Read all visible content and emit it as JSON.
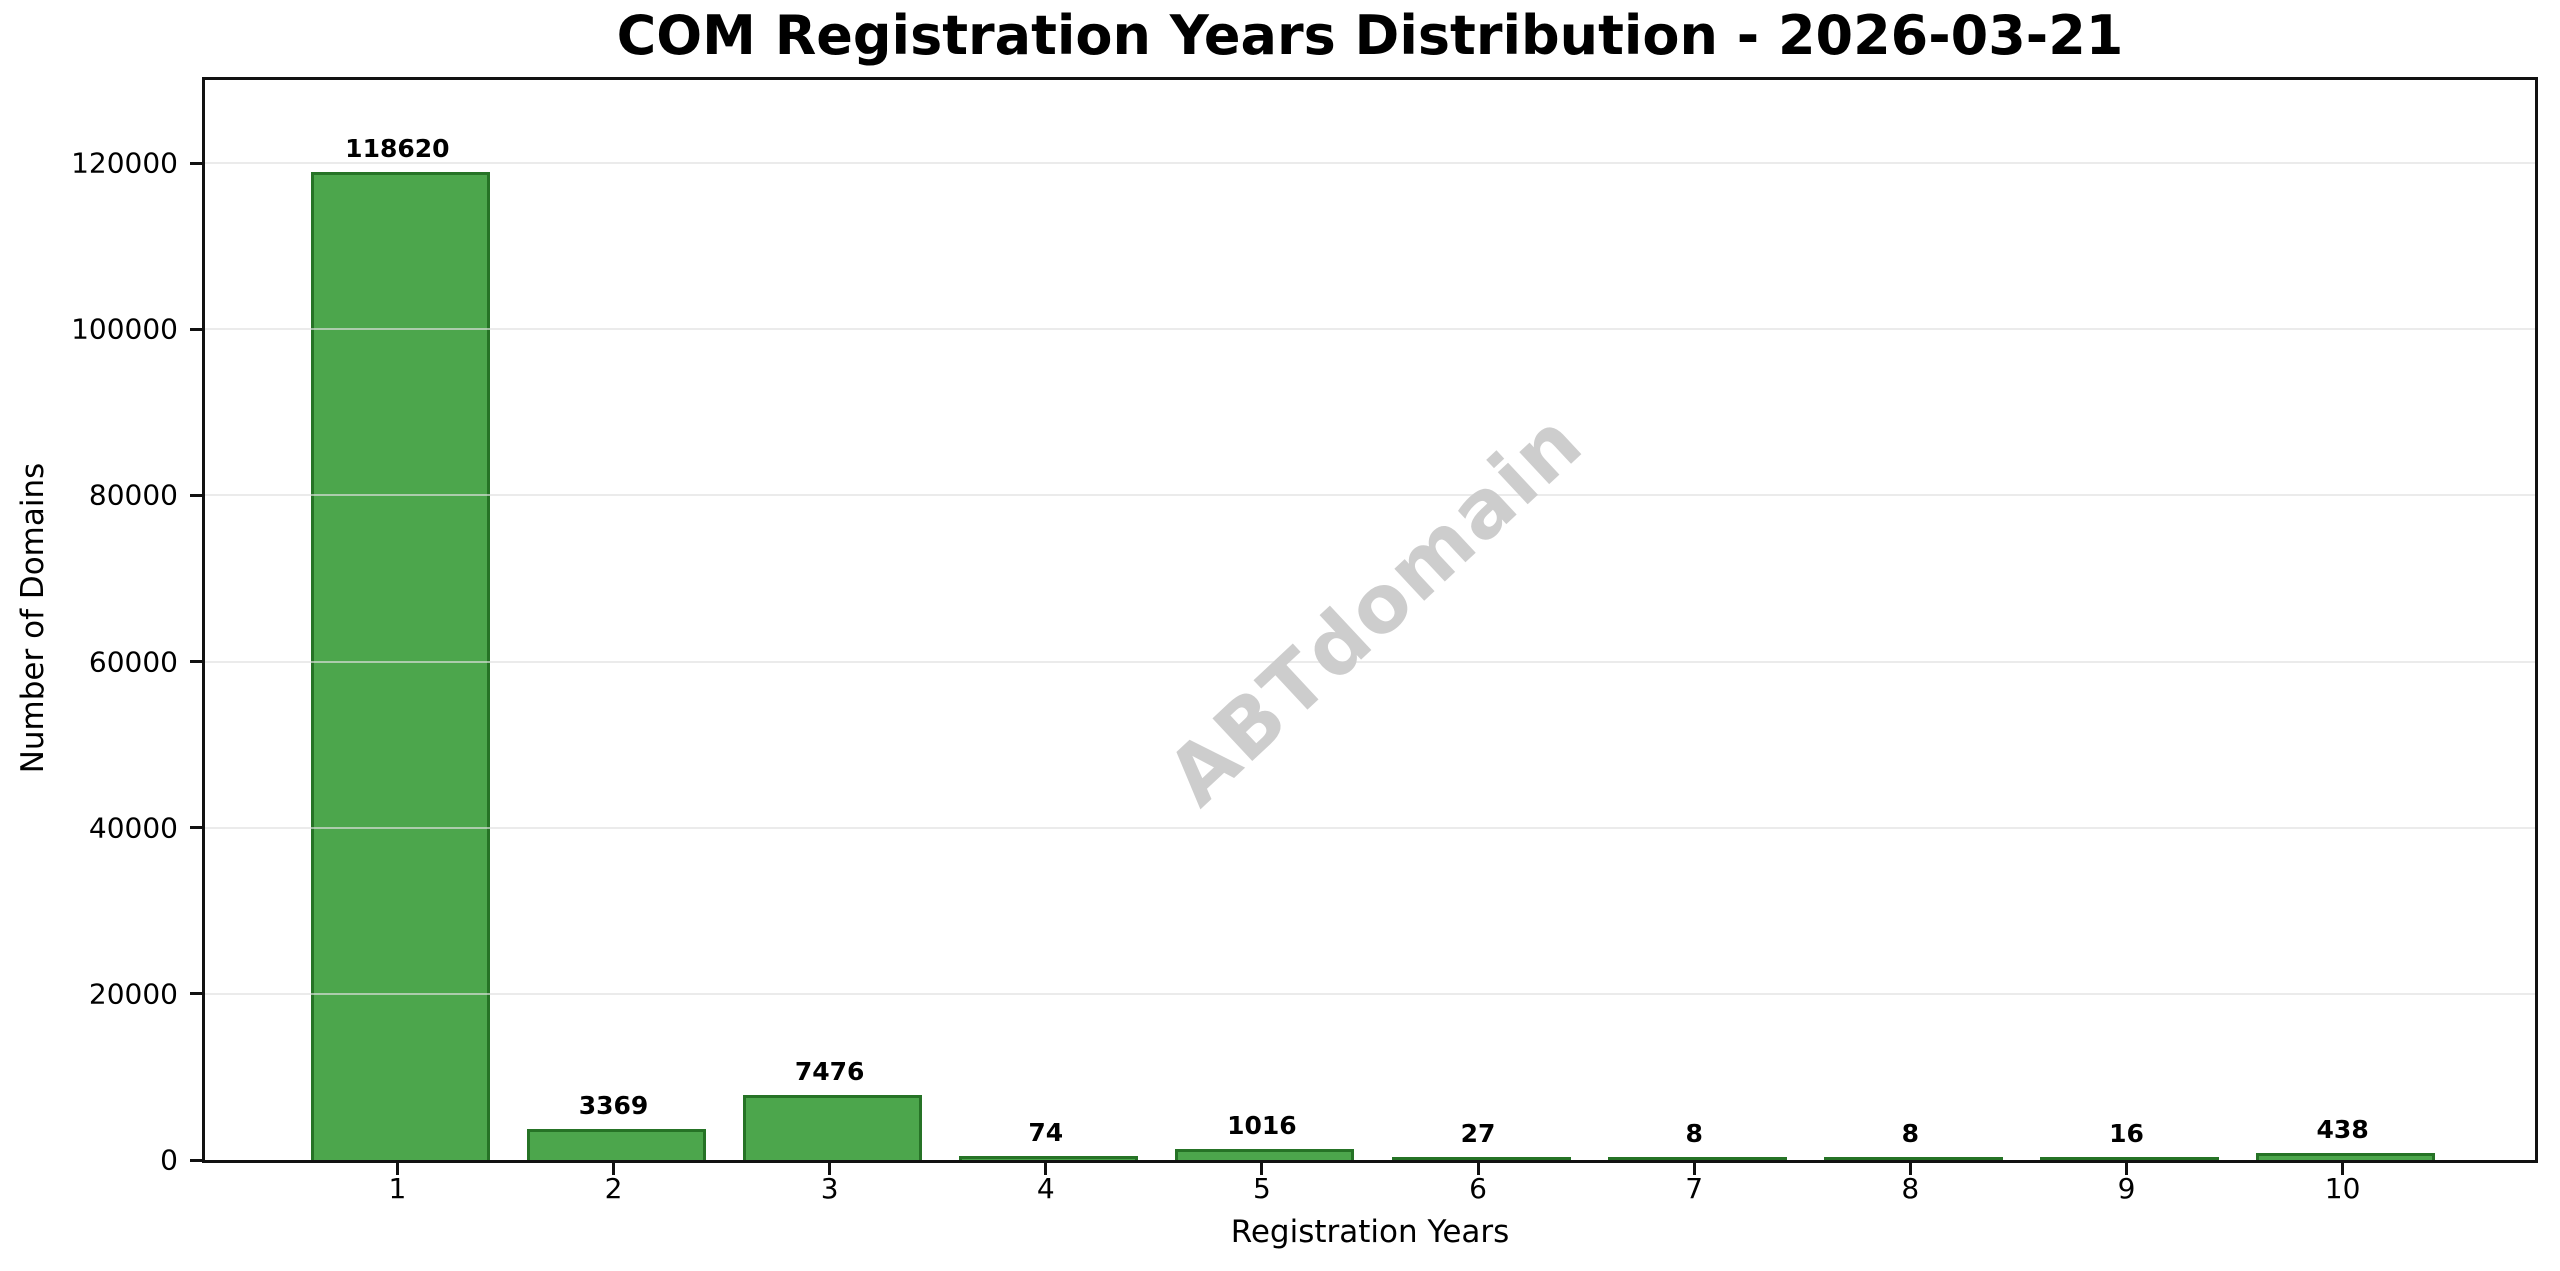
{
  "title": "COM Registration Years Distribution - 2026-03-21",
  "watermark": "ABTdomain",
  "chart_data": {
    "type": "bar",
    "title": "COM Registration Years Distribution - 2026-03-21",
    "xlabel": "Registration Years",
    "ylabel": "Number of Domains",
    "categories": [
      1,
      2,
      3,
      4,
      5,
      6,
      7,
      8,
      9,
      10
    ],
    "values": [
      118620,
      3369,
      7476,
      74,
      1016,
      27,
      8,
      8,
      16,
      438
    ],
    "yticks": [
      0,
      20000,
      40000,
      60000,
      80000,
      100000,
      120000
    ],
    "ylim": [
      0,
      130000
    ],
    "xlim": [
      0.11,
      10.89
    ],
    "grid": "horizontal",
    "legend": "none",
    "bar_fill_color": "#4CA64C",
    "bar_edge_color": "#267326",
    "watermark_text": "ABTdomain",
    "watermark_color": "#cdcdcd"
  }
}
